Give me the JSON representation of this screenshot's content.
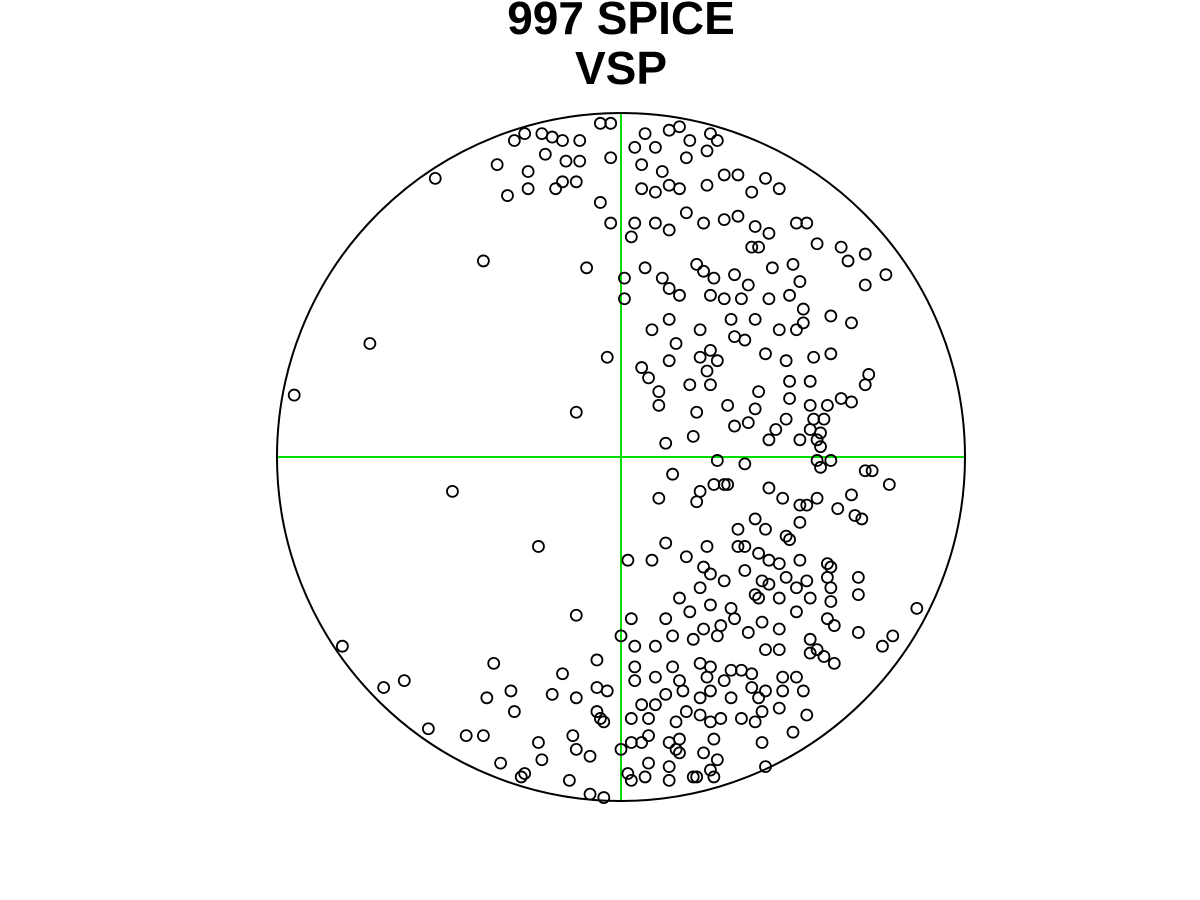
{
  "chart_data": {
    "type": "scatter",
    "title": "997 SPICE",
    "subtitle": "VSP",
    "xlim": [
      -1,
      1
    ],
    "ylim": [
      -1,
      1
    ],
    "color": "#000000",
    "crosshair_color": "#00dd00",
    "x": [
      -0.95,
      -0.73,
      -0.4,
      -0.54,
      -0.36,
      -0.33,
      -0.31,
      -0.28,
      -0.23,
      -0.22,
      -0.2,
      -0.17,
      -0.27,
      -0.27,
      -0.19,
      -0.17,
      -0.13,
      -0.12,
      -0.12,
      -0.16,
      -0.06,
      -0.03,
      -0.03,
      -0.06,
      -0.03,
      -0.1,
      -0.04,
      -0.13,
      -0.49,
      -0.24,
      -0.13,
      -0.81,
      -0.69,
      -0.63,
      -0.56,
      -0.45,
      -0.4,
      -0.37,
      -0.39,
      -0.32,
      -0.31,
      -0.35,
      -0.29,
      -0.28,
      -0.24,
      -0.23,
      -0.2,
      -0.17,
      -0.15,
      -0.14,
      -0.13,
      -0.09,
      -0.09,
      -0.05,
      -0.07,
      -0.07,
      -0.04,
      -0.13,
      -0.07,
      -0.06,
      -0.05,
      0.0,
      0.0,
      0.04,
      0.07,
      0.1,
      0.14,
      0.17,
      0.2,
      0.26,
      0.28,
      0.25,
      0.06,
      0.12,
      0.14,
      0.17,
      0.06,
      0.1,
      0.19,
      0.25,
      0.3,
      0.34,
      0.38,
      0.42,
      0.46,
      0.04,
      0.1,
      0.14,
      0.19,
      0.24,
      0.3,
      0.34,
      0.39,
      0.43,
      0.51,
      0.54,
      0.57,
      0.64,
      0.71,
      0.77,
      0.71,
      0.66,
      0.03,
      0.01,
      0.01,
      0.07,
      0.12,
      0.14,
      0.17,
      0.22,
      0.24,
      0.27,
      0.26,
      0.33,
      0.37,
      0.38,
      0.4,
      0.44,
      0.5,
      0.52,
      0.49,
      0.43,
      0.35,
      0.3,
      0.53,
      0.53,
      0.61,
      0.67,
      0.14,
      0.09,
      0.23,
      0.32,
      0.39,
      0.46,
      0.51,
      0.33,
      0.16,
      0.26,
      0.36,
      0.42,
      0.48,
      0.56,
      0.61,
      0.06,
      0.14,
      0.23,
      0.28,
      0.08,
      0.25,
      0.2,
      0.26,
      0.4,
      0.49,
      0.55,
      0.72,
      0.71,
      0.64,
      0.67,
      0.11,
      0.11,
      0.22,
      0.31,
      0.39,
      0.49,
      0.55,
      0.6,
      0.48,
      0.56,
      0.59,
      0.33,
      0.37,
      0.45,
      0.55,
      0.58,
      0.52,
      0.57,
      0.43,
      0.21,
      0.13,
      0.58,
      0.28,
      0.36,
      0.57,
      0.61,
      0.58,
      0.71,
      0.73,
      0.15,
      0.27,
      0.3,
      0.31,
      0.78,
      0.23,
      0.11,
      0.22,
      0.43,
      0.47,
      0.52,
      0.54,
      0.57,
      0.67,
      0.63,
      0.68,
      0.7,
      0.52,
      0.39,
      0.34,
      0.42,
      0.48,
      0.49,
      0.36,
      0.13,
      0.25,
      0.34,
      0.4,
      0.43,
      0.19,
      0.09,
      0.02,
      0.46,
      0.52,
      0.6,
      0.61,
      0.24,
      0.26,
      0.36,
      0.41,
      0.48,
      0.54,
      0.6,
      0.69,
      0.23,
      0.3,
      0.39,
      0.43,
      0.51,
      0.61,
      0.69,
      0.86,
      0.17,
      0.26,
      0.32,
      0.4,
      0.46,
      0.55,
      0.61,
      0.03,
      0.13,
      0.2,
      0.29,
      0.33,
      0.41,
      0.46,
      0.51,
      0.6,
      0.62,
      0.69,
      0.79,
      0.04,
      0.1,
      0.15,
      0.21,
      0.24,
      0.28,
      0.37,
      0.42,
      0.55,
      0.57,
      0.59,
      0.62,
      0.76,
      0.55,
      0.04,
      0.15,
      0.23,
      0.26,
      0.32,
      0.35,
      0.38,
      0.46,
      0.04,
      0.1,
      0.17,
      0.25,
      0.3,
      0.38,
      0.42,
      0.47,
      0.51,
      0.06,
      0.13,
      0.18,
      0.23,
      0.26,
      0.32,
      0.4,
      0.47,
      0.53,
      0.1,
      0.19,
      0.23,
      0.35,
      0.41,
      0.46,
      0.54,
      0.03,
      0.08,
      0.16,
      0.26,
      0.29,
      0.39,
      0.08,
      0.17,
      0.27,
      0.41,
      0.5,
      0.03,
      0.06,
      0.14,
      0.16,
      0.17,
      0.24,
      0.28,
      0.42,
      0.08,
      0.14,
      0.26,
      0.02,
      0.03,
      0.07,
      0.14,
      0.21,
      0.22,
      0.27
    ],
    "values": [
      0.18,
      0.33,
      0.57,
      0.81,
      0.85,
      0.76,
      0.92,
      0.94,
      0.94,
      0.88,
      0.93,
      0.92,
      0.83,
      0.78,
      0.78,
      0.8,
      0.8,
      0.86,
      0.92,
      0.86,
      0.97,
      0.97,
      0.87,
      0.74,
      0.68,
      0.55,
      0.29,
      0.13,
      -0.1,
      -0.26,
      -0.46,
      -0.55,
      -0.67,
      -0.65,
      -0.79,
      -0.81,
      -0.81,
      -0.6,
      -0.7,
      -0.68,
      -0.74,
      -0.89,
      -0.93,
      -0.92,
      -0.83,
      -0.88,
      -0.69,
      -0.63,
      -0.94,
      -0.81,
      -0.85,
      -0.87,
      -0.98,
      -0.99,
      -0.59,
      -0.67,
      -0.68,
      -0.7,
      -0.74,
      -0.76,
      -0.77,
      -0.52,
      -0.85,
      0.9,
      0.94,
      0.9,
      0.95,
      0.96,
      0.92,
      0.94,
      0.92,
      0.89,
      0.85,
      0.83,
      0.79,
      0.78,
      0.78,
      0.77,
      0.87,
      0.79,
      0.82,
      0.82,
      0.77,
      0.81,
      0.78,
      0.68,
      0.68,
      0.66,
      0.71,
      0.68,
      0.69,
      0.7,
      0.67,
      0.65,
      0.68,
      0.68,
      0.62,
      0.61,
      0.59,
      0.53,
      0.5,
      0.57,
      0.64,
      0.52,
      0.46,
      0.55,
      0.52,
      0.49,
      0.47,
      0.56,
      0.54,
      0.52,
      0.47,
      0.53,
      0.5,
      0.61,
      0.61,
      0.55,
      0.56,
      0.51,
      0.47,
      0.46,
      0.46,
      0.46,
      0.43,
      0.39,
      0.41,
      0.39,
      0.4,
      0.37,
      0.37,
      0.4,
      0.4,
      0.37,
      0.37,
      0.35,
      0.33,
      0.31,
      0.34,
      0.3,
      0.28,
      0.29,
      0.3,
      0.26,
      0.28,
      0.29,
      0.28,
      0.23,
      0.25,
      0.21,
      0.21,
      0.19,
      0.22,
      0.22,
      0.24,
      0.21,
      0.17,
      0.16,
      0.19,
      0.15,
      0.13,
      0.15,
      0.14,
      0.17,
      0.15,
      0.15,
      0.11,
      0.11,
      0.11,
      0.09,
      0.1,
      0.08,
      0.08,
      0.07,
      0.05,
      0.05,
      0.05,
      0.06,
      0.04,
      0.03,
      -0.01,
      -0.02,
      -0.01,
      -0.01,
      -0.03,
      -0.04,
      -0.04,
      -0.05,
      -0.08,
      -0.08,
      -0.08,
      -0.08,
      -0.1,
      -0.12,
      -0.13,
      -0.09,
      -0.12,
      -0.14,
      -0.14,
      -0.12,
      -0.11,
      -0.15,
      -0.17,
      -0.18,
      -0.19,
      -0.18,
      -0.21,
      -0.21,
      -0.23,
      -0.24,
      -0.26,
      -0.25,
      -0.26,
      -0.26,
      -0.28,
      -0.3,
      -0.29,
      -0.3,
      -0.3,
      -0.31,
      -0.3,
      -0.31,
      -0.32,
      -0.32,
      -0.34,
      -0.33,
      -0.36,
      -0.35,
      -0.36,
      -0.35,
      -0.35,
      -0.38,
      -0.36,
      -0.4,
      -0.37,
      -0.38,
      -0.38,
      -0.4,
      -0.44,
      -0.41,
      -0.43,
      -0.44,
      -0.41,
      -0.41,
      -0.41,
      -0.42,
      -0.47,
      -0.47,
      -0.45,
      -0.49,
      -0.47,
      -0.48,
      -0.5,
      -0.45,
      -0.47,
      -0.49,
      -0.51,
      -0.52,
      -0.55,
      -0.55,
      -0.52,
      -0.53,
      -0.5,
      -0.52,
      -0.51,
      -0.56,
      -0.53,
      -0.56,
      -0.58,
      -0.6,
      -0.55,
      -0.57,
      -0.61,
      -0.61,
      -0.6,
      -0.61,
      -0.62,
      -0.62,
      -0.63,
      -0.56,
      -0.65,
      -0.64,
      -0.65,
      -0.64,
      -0.65,
      -0.67,
      -0.68,
      -0.64,
      -0.64,
      -0.72,
      -0.69,
      -0.68,
      -0.7,
      -0.68,
      -0.7,
      -0.7,
      -0.68,
      -0.68,
      -0.72,
      -0.74,
      -0.75,
      -0.76,
      -0.74,
      -0.73,
      -0.75,
      -0.76,
      -0.76,
      -0.77,
      -0.77,
      -0.76,
      -0.77,
      -0.81,
      -0.82,
      -0.82,
      -0.83,
      -0.8,
      -0.83,
      -0.83,
      -0.83,
      -0.85,
      -0.86,
      -0.86,
      -0.88,
      -0.9,
      -0.89,
      -0.9,
      -0.91,
      -0.92,
      -0.94,
      -0.93,
      -0.94,
      -0.93,
      -0.93,
      -0.93
    ]
  }
}
